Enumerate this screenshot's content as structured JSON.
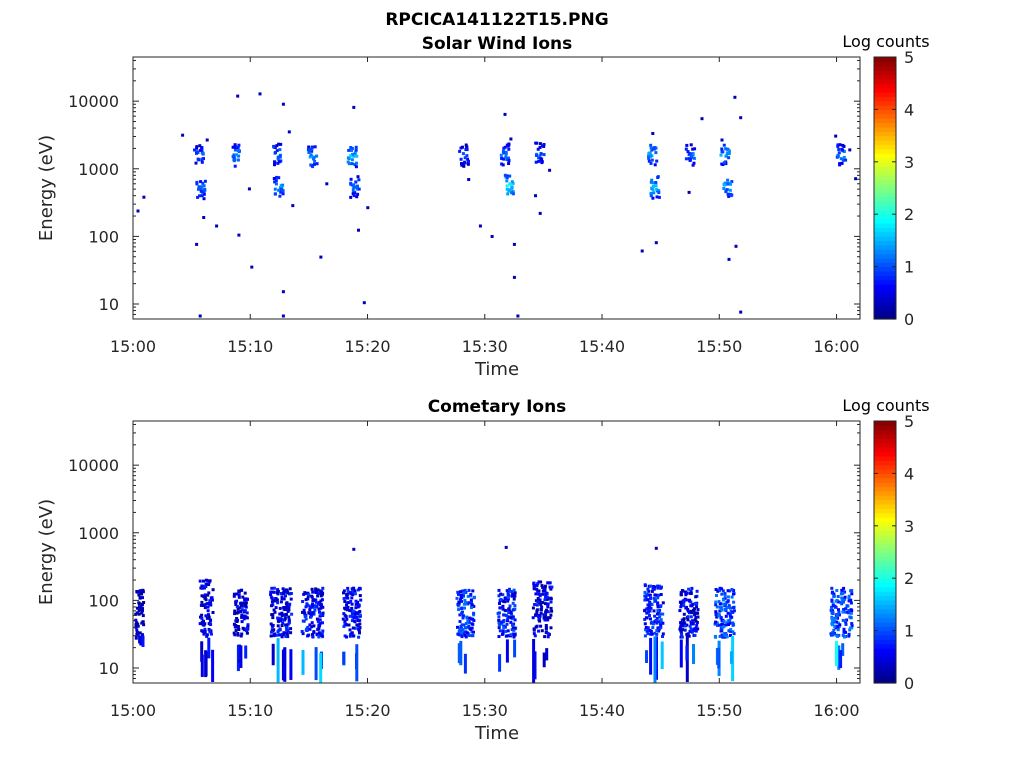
{
  "figure": {
    "title": "RPCICA141122T15.PNG"
  },
  "chart_data": [
    {
      "type": "heatmap",
      "title": "Solar Wind Ions",
      "xlabel": "Time",
      "ylabel": "Energy (eV)",
      "x_ticks": [
        "15:00",
        "15:10",
        "15:20",
        "15:30",
        "15:40",
        "15:50",
        "16:00"
      ],
      "y_ticks": [
        "10",
        "100",
        "1000",
        "10000"
      ],
      "y_scale": "log",
      "y_range": [
        6,
        45000
      ],
      "x_range_minutes": [
        0,
        62
      ],
      "colorbar": {
        "label": "Log counts",
        "ticks": [
          "0",
          "1",
          "2",
          "3",
          "4",
          "5"
        ],
        "range": [
          0,
          5
        ],
        "colormap": "jet"
      },
      "clusters": [
        {
          "t_minutes": 5.5,
          "energy_ev": 1700,
          "log_counts": 1.3
        },
        {
          "t_minutes": 5.7,
          "energy_ev": 550,
          "log_counts": 1.5
        },
        {
          "t_minutes": 8.7,
          "energy_ev": 1650,
          "log_counts": 1.6
        },
        {
          "t_minutes": 12.1,
          "energy_ev": 1700,
          "log_counts": 1.5
        },
        {
          "t_minutes": 12.3,
          "energy_ev": 560,
          "log_counts": 1.6
        },
        {
          "t_minutes": 15.2,
          "energy_ev": 1550,
          "log_counts": 1.6
        },
        {
          "t_minutes": 18.6,
          "energy_ev": 1600,
          "log_counts": 1.8
        },
        {
          "t_minutes": 18.8,
          "energy_ev": 560,
          "log_counts": 1.4
        },
        {
          "t_minutes": 28.1,
          "energy_ev": 1650,
          "log_counts": 1.3
        },
        {
          "t_minutes": 31.6,
          "energy_ev": 1700,
          "log_counts": 1.5
        },
        {
          "t_minutes": 32.0,
          "energy_ev": 580,
          "log_counts": 2.0
        },
        {
          "t_minutes": 34.6,
          "energy_ev": 1750,
          "log_counts": 1.3
        },
        {
          "t_minutes": 44.2,
          "energy_ev": 1700,
          "log_counts": 1.7
        },
        {
          "t_minutes": 44.4,
          "energy_ev": 560,
          "log_counts": 1.8
        },
        {
          "t_minutes": 47.4,
          "energy_ev": 1650,
          "log_counts": 1.4
        },
        {
          "t_minutes": 50.4,
          "energy_ev": 1700,
          "log_counts": 1.6
        },
        {
          "t_minutes": 50.6,
          "energy_ev": 580,
          "log_counts": 1.7
        },
        {
          "t_minutes": 60.3,
          "energy_ev": 1700,
          "log_counts": 1.5
        }
      ],
      "sparse_points": [
        {
          "t_minutes": 0.3,
          "energy_ev": 250
        },
        {
          "t_minutes": 0.8,
          "energy_ev": 400
        },
        {
          "t_minutes": 4.1,
          "energy_ev": 3300
        },
        {
          "t_minutes": 5.3,
          "energy_ev": 80
        },
        {
          "t_minutes": 5.6,
          "energy_ev": 7
        },
        {
          "t_minutes": 5.9,
          "energy_ev": 200
        },
        {
          "t_minutes": 6.2,
          "energy_ev": 2800
        },
        {
          "t_minutes": 7.0,
          "energy_ev": 150
        },
        {
          "t_minutes": 8.8,
          "energy_ev": 12500
        },
        {
          "t_minutes": 8.9,
          "energy_ev": 110
        },
        {
          "t_minutes": 9.8,
          "energy_ev": 530
        },
        {
          "t_minutes": 10.0,
          "energy_ev": 37
        },
        {
          "t_minutes": 10.7,
          "energy_ev": 13500
        },
        {
          "t_minutes": 12.7,
          "energy_ev": 9500
        },
        {
          "t_minutes": 12.7,
          "energy_ev": 16
        },
        {
          "t_minutes": 12.7,
          "energy_ev": 7
        },
        {
          "t_minutes": 13.2,
          "energy_ev": 3700
        },
        {
          "t_minutes": 13.5,
          "energy_ev": 300
        },
        {
          "t_minutes": 15.9,
          "energy_ev": 52
        },
        {
          "t_minutes": 16.4,
          "energy_ev": 630
        },
        {
          "t_minutes": 18.7,
          "energy_ev": 8500
        },
        {
          "t_minutes": 19.1,
          "energy_ev": 130
        },
        {
          "t_minutes": 19.6,
          "energy_ev": 11
        },
        {
          "t_minutes": 19.9,
          "energy_ev": 280
        },
        {
          "t_minutes": 28.5,
          "energy_ev": 730
        },
        {
          "t_minutes": 29.5,
          "energy_ev": 150
        },
        {
          "t_minutes": 30.5,
          "energy_ev": 105
        },
        {
          "t_minutes": 31.6,
          "energy_ev": 6700
        },
        {
          "t_minutes": 32.1,
          "energy_ev": 2900
        },
        {
          "t_minutes": 32.4,
          "energy_ev": 80
        },
        {
          "t_minutes": 32.4,
          "energy_ev": 26
        },
        {
          "t_minutes": 32.7,
          "energy_ev": 7
        },
        {
          "t_minutes": 34.2,
          "energy_ev": 420
        },
        {
          "t_minutes": 34.6,
          "energy_ev": 230
        },
        {
          "t_minutes": 35.4,
          "energy_ev": 1000
        },
        {
          "t_minutes": 43.3,
          "energy_ev": 64
        },
        {
          "t_minutes": 44.2,
          "energy_ev": 3500
        },
        {
          "t_minutes": 44.5,
          "energy_ev": 85
        },
        {
          "t_minutes": 47.3,
          "energy_ev": 470
        },
        {
          "t_minutes": 48.4,
          "energy_ev": 5800
        },
        {
          "t_minutes": 50.1,
          "energy_ev": 2800
        },
        {
          "t_minutes": 50.7,
          "energy_ev": 48
        },
        {
          "t_minutes": 51.2,
          "energy_ev": 12000
        },
        {
          "t_minutes": 51.3,
          "energy_ev": 75
        },
        {
          "t_minutes": 51.7,
          "energy_ev": 8
        },
        {
          "t_minutes": 51.7,
          "energy_ev": 6000
        },
        {
          "t_minutes": 59.8,
          "energy_ev": 3200
        },
        {
          "t_minutes": 61.0,
          "energy_ev": 2000
        },
        {
          "t_minutes": 61.5,
          "energy_ev": 750
        }
      ]
    },
    {
      "type": "heatmap",
      "title": "Cometary Ions",
      "xlabel": "Time",
      "ylabel": "Energy (eV)",
      "x_ticks": [
        "15:00",
        "15:10",
        "15:20",
        "15:30",
        "15:40",
        "15:50",
        "16:00"
      ],
      "y_ticks": [
        "10",
        "100",
        "1000",
        "10000"
      ],
      "y_scale": "log",
      "y_range": [
        6,
        45000
      ],
      "x_range_minutes": [
        0,
        62
      ],
      "colorbar": {
        "label": "Log counts",
        "ticks": [
          "0",
          "1",
          "2",
          "3",
          "4",
          "5"
        ],
        "range": [
          0,
          5
        ],
        "colormap": "jet"
      },
      "bursts": [
        {
          "t_minutes": 0.1,
          "width_min": 0.7,
          "e_low": 30,
          "e_high": 150,
          "log_counts": 0.5
        },
        {
          "t_minutes": 5.6,
          "width_min": 1.1,
          "e_low": 6,
          "e_high": 210,
          "log_counts": 0.8
        },
        {
          "t_minutes": 8.5,
          "width_min": 1.2,
          "e_low": 6,
          "e_high": 150,
          "log_counts": 0.8
        },
        {
          "t_minutes": 11.6,
          "width_min": 1.8,
          "e_low": 6,
          "e_high": 160,
          "log_counts": 0.9
        },
        {
          "t_minutes": 14.3,
          "width_min": 1.8,
          "e_low": 6,
          "e_high": 160,
          "log_counts": 1.0
        },
        {
          "t_minutes": 17.8,
          "width_min": 1.5,
          "e_low": 6,
          "e_high": 160,
          "log_counts": 1.0
        },
        {
          "t_minutes": 27.5,
          "width_min": 1.5,
          "e_low": 6,
          "e_high": 160,
          "log_counts": 1.2
        },
        {
          "t_minutes": 31.0,
          "width_min": 1.5,
          "e_low": 6,
          "e_high": 160,
          "log_counts": 1.1
        },
        {
          "t_minutes": 34.0,
          "width_min": 1.6,
          "e_low": 6,
          "e_high": 200,
          "log_counts": 0.8
        },
        {
          "t_minutes": 43.5,
          "width_min": 1.6,
          "e_low": 6,
          "e_high": 180,
          "log_counts": 1.1
        },
        {
          "t_minutes": 46.5,
          "width_min": 1.6,
          "e_low": 6,
          "e_high": 160,
          "log_counts": 0.9
        },
        {
          "t_minutes": 49.5,
          "width_min": 1.7,
          "e_low": 6,
          "e_high": 160,
          "log_counts": 1.3
        },
        {
          "t_minutes": 59.4,
          "width_min": 1.8,
          "e_low": 8,
          "e_high": 160,
          "log_counts": 1.3
        }
      ],
      "sparse_points": [
        {
          "t_minutes": 18.7,
          "energy_ev": 600
        },
        {
          "t_minutes": 31.7,
          "energy_ev": 640
        },
        {
          "t_minutes": 44.5,
          "energy_ev": 620
        }
      ]
    }
  ]
}
